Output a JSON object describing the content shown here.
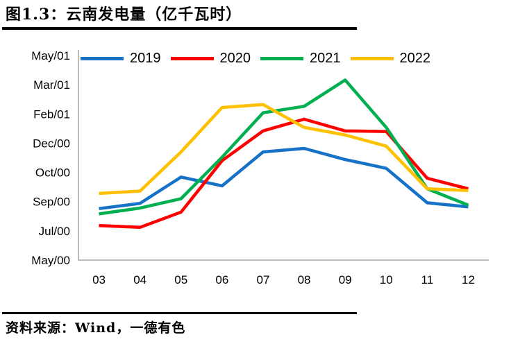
{
  "header": {
    "title": "图1.3：云南发电量（亿千瓦时）"
  },
  "footer": {
    "source": "资料来源：Wind，一德有色"
  },
  "chart_data": {
    "type": "line",
    "title": "云南发电量（亿千瓦时）",
    "categories": [
      "03",
      "04",
      "05",
      "06",
      "07",
      "08",
      "09",
      "10",
      "11",
      "12"
    ],
    "series": [
      {
        "name": "2019",
        "color": "#1572C6",
        "values": [
          238,
          247,
          292,
          277,
          335,
          341,
          322,
          307,
          248,
          241
        ]
      },
      {
        "name": "2020",
        "color": "#FF0000",
        "values": [
          209,
          206,
          232,
          320,
          371,
          391,
          371,
          370,
          290,
          272
        ]
      },
      {
        "name": "2021",
        "color": "#00B050",
        "values": [
          229,
          239,
          255,
          326,
          402,
          413,
          458,
          377,
          272,
          244
        ]
      },
      {
        "name": "2022",
        "color": "#FFC000",
        "values": [
          264,
          268,
          335,
          411,
          416,
          377,
          364,
          345,
          272,
          269
        ]
      }
    ],
    "y_axis": {
      "min": 150,
      "max": 500,
      "step": 50,
      "tick_labels_bottom_to_top": [
        "May/00",
        "Jul/00",
        "Sep/00",
        "Oct/00",
        "Dec/00",
        "Feb/01",
        "Mar/01",
        "May/01"
      ]
    },
    "x_axis": {
      "tick_labels": [
        "03",
        "04",
        "05",
        "06",
        "07",
        "08",
        "09",
        "10",
        "11",
        "12"
      ]
    },
    "legend_position": "top",
    "grid": false,
    "axis_color": "#A6A6A6"
  }
}
